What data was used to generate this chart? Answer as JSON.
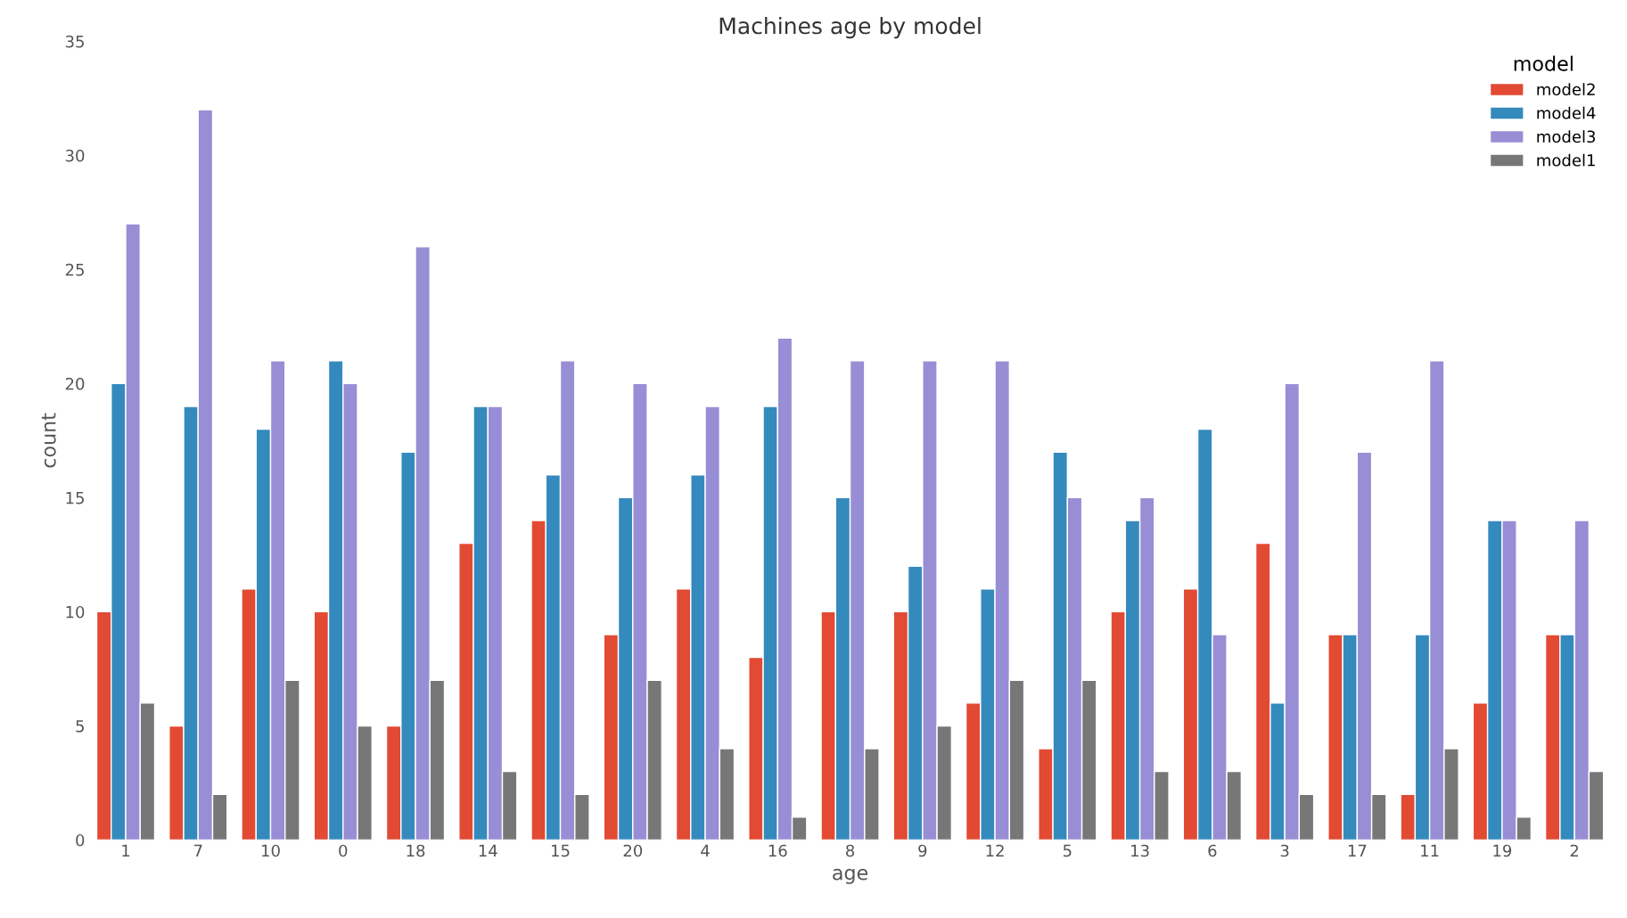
{
  "chart_data": {
    "type": "bar",
    "title": "Machines age by model",
    "xlabel": "age",
    "ylabel": "count",
    "legend_title": "model",
    "categories": [
      "1",
      "7",
      "10",
      "0",
      "18",
      "14",
      "15",
      "20",
      "4",
      "16",
      "8",
      "9",
      "12",
      "5",
      "13",
      "6",
      "3",
      "17",
      "11",
      "19",
      "2"
    ],
    "series": [
      {
        "name": "model2",
        "color": "#e24a33",
        "values": [
          10,
          5,
          11,
          10,
          5,
          13,
          14,
          9,
          11,
          8,
          10,
          10,
          6,
          4,
          10,
          11,
          13,
          9,
          2,
          6,
          9
        ]
      },
      {
        "name": "model4",
        "color": "#348abd",
        "values": [
          20,
          19,
          18,
          21,
          17,
          19,
          16,
          15,
          16,
          19,
          15,
          12,
          11,
          17,
          14,
          18,
          6,
          9,
          9,
          14,
          9
        ]
      },
      {
        "name": "model3",
        "color": "#988ed5",
        "values": [
          27,
          32,
          21,
          20,
          26,
          19,
          21,
          20,
          19,
          22,
          21,
          21,
          21,
          15,
          15,
          9,
          20,
          17,
          21,
          14,
          14
        ]
      },
      {
        "name": "model1",
        "color": "#777777",
        "values": [
          6,
          2,
          7,
          5,
          7,
          3,
          2,
          7,
          4,
          1,
          4,
          5,
          7,
          7,
          3,
          3,
          2,
          2,
          4,
          1,
          3
        ]
      }
    ],
    "ylim": [
      0,
      35
    ],
    "yticks": [
      0,
      5,
      10,
      15,
      20,
      25,
      30,
      35
    ],
    "grid": false,
    "legend": "top right"
  }
}
